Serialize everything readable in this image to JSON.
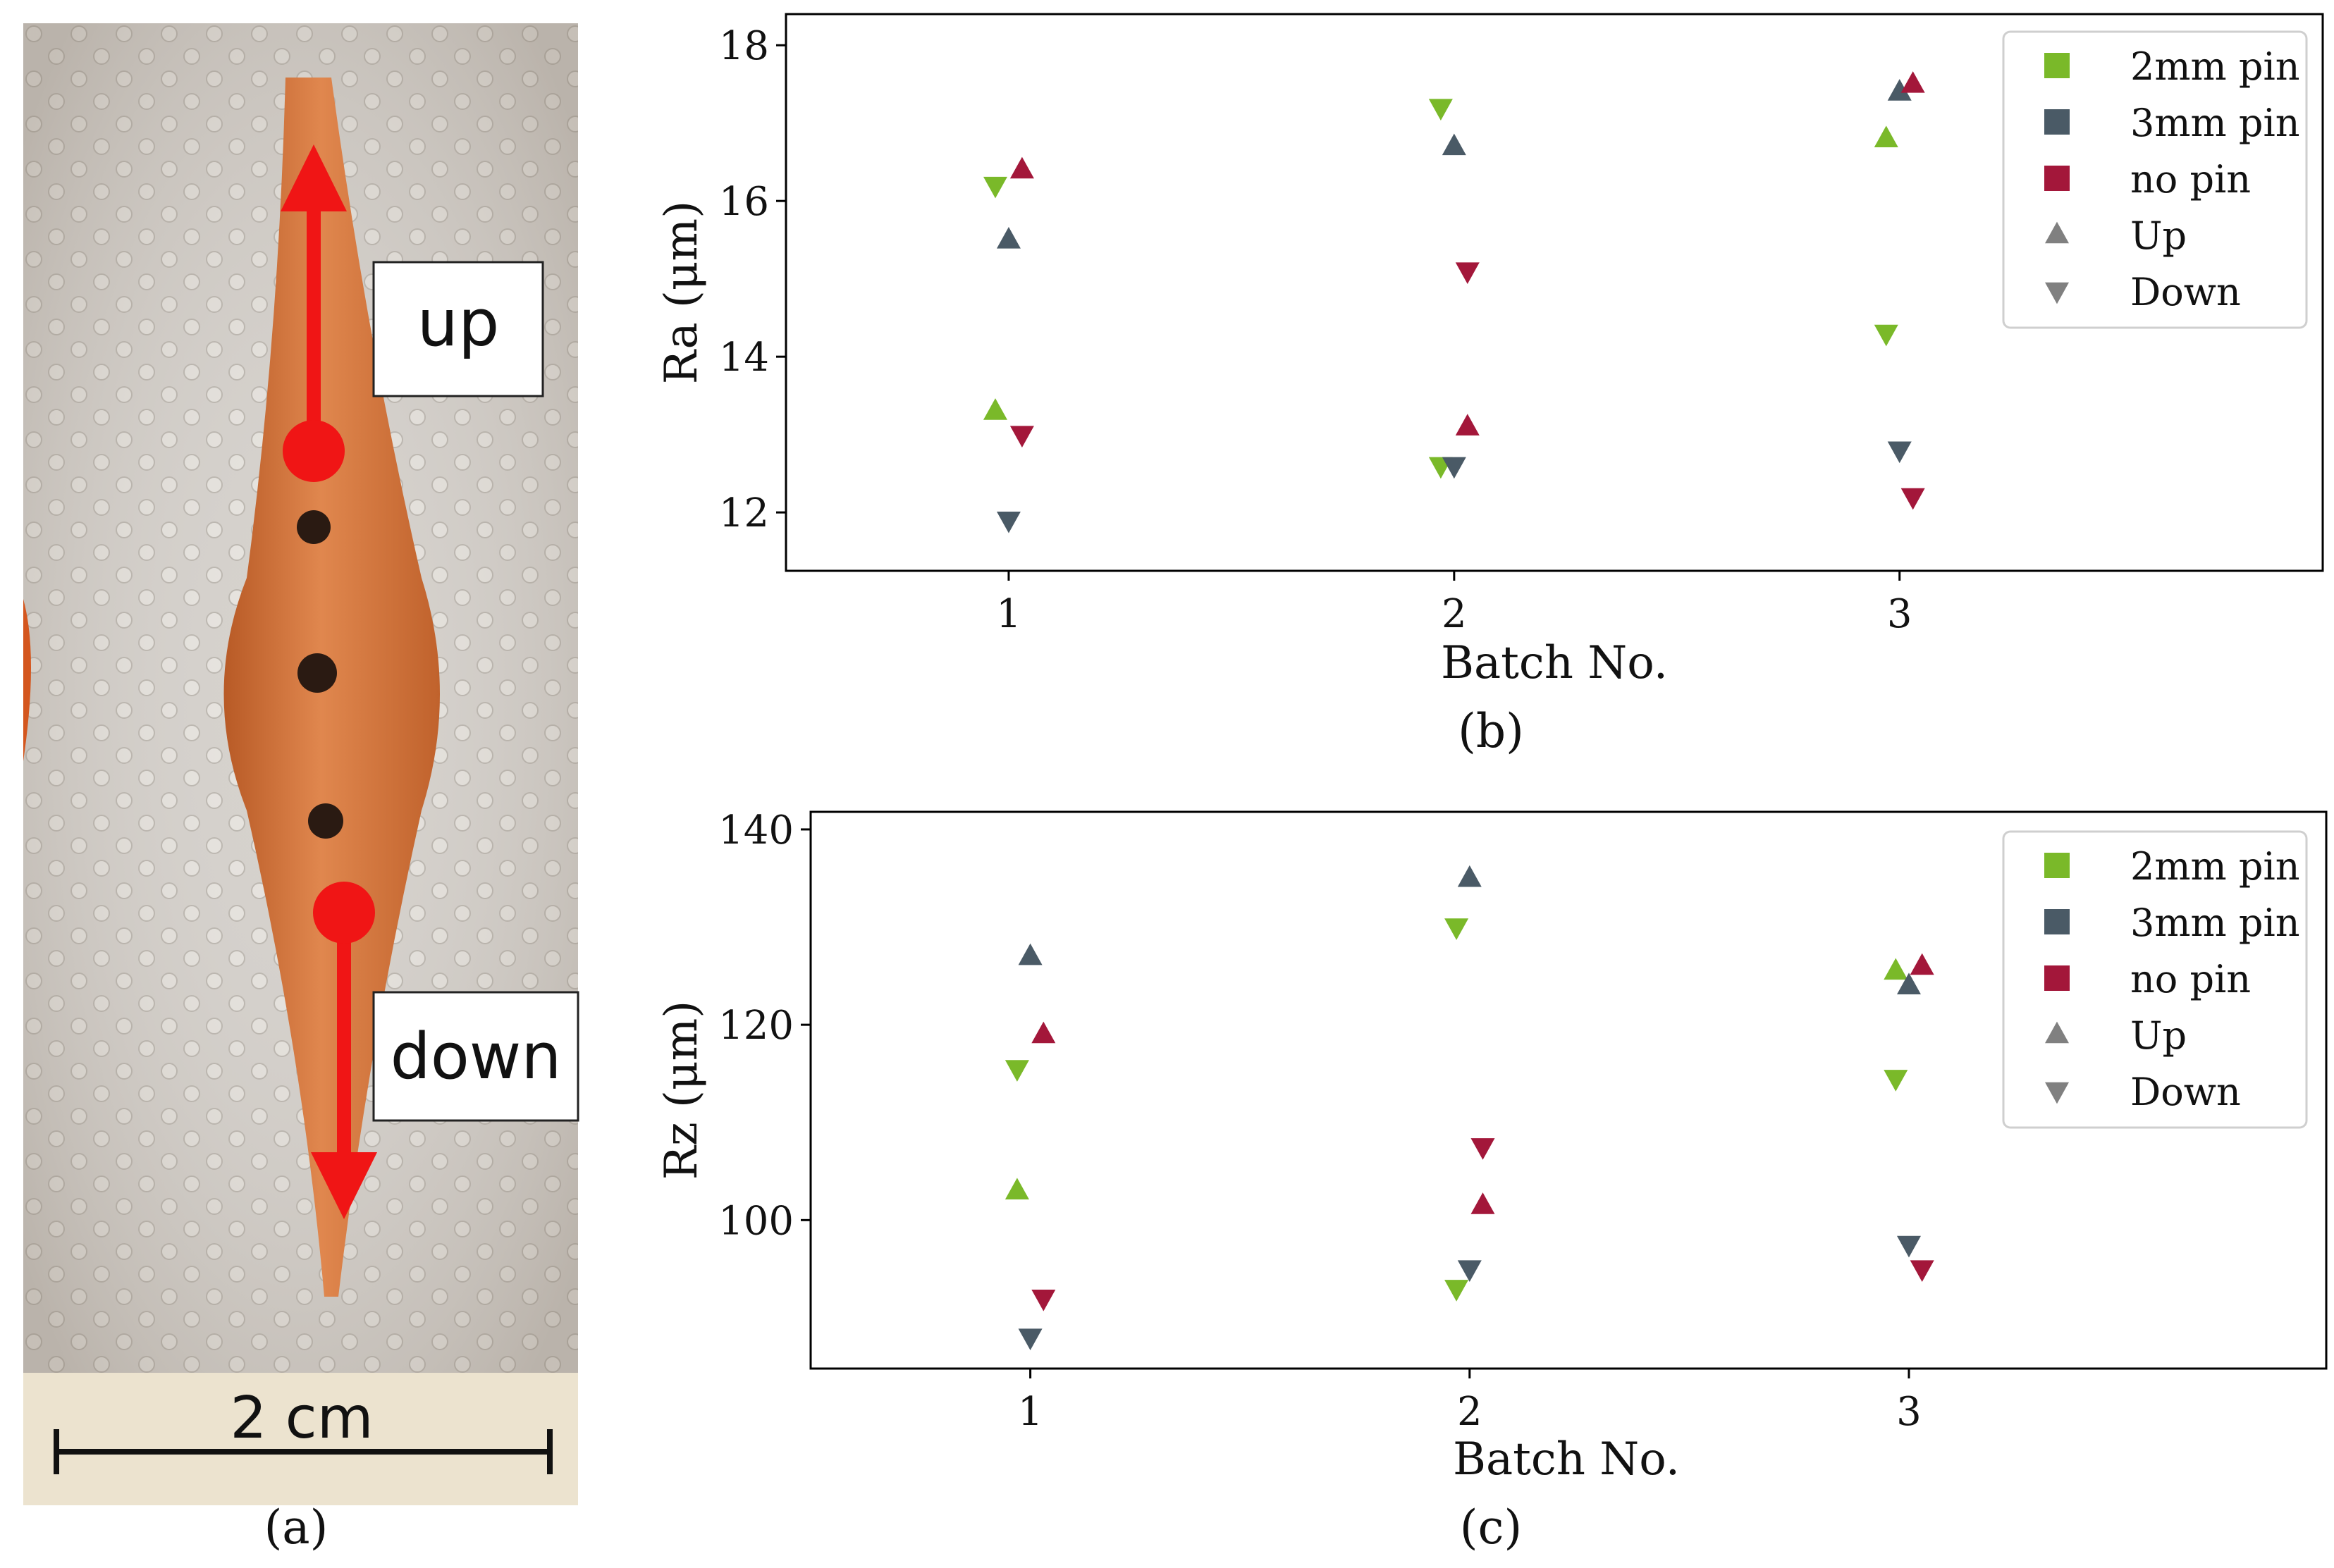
{
  "photo": {
    "up_label": "up",
    "down_label": "down",
    "scale_label": "2 cm",
    "caption": "(a)"
  },
  "colors": {
    "green": "#7ab929",
    "slate": "#4a5a66",
    "crimson": "#a3173a",
    "gray": "#808080",
    "arrow": "#f01515",
    "part": "#d9763c"
  },
  "chart_data": [
    {
      "type": "scatter",
      "id": "b",
      "caption": "(b)",
      "title": "",
      "xlabel": "Batch No.",
      "ylabel": "Ra (μm)",
      "xlim": [
        0.5,
        3.95
      ],
      "ylim": [
        11.25,
        18.4
      ],
      "xticks": [
        1,
        2,
        3
      ],
      "yticks": [
        12,
        14,
        16,
        18
      ],
      "legend_position": "top-right",
      "legend": [
        {
          "label": "2mm pin",
          "marker": "square",
          "color": "#7ab929"
        },
        {
          "label": "3mm pin",
          "marker": "square",
          "color": "#4a5a66"
        },
        {
          "label": "no pin",
          "marker": "square",
          "color": "#a3173a"
        },
        {
          "label": "Up",
          "marker": "triangle-up",
          "color": "#808080"
        },
        {
          "label": "Down",
          "marker": "triangle-down",
          "color": "#808080"
        }
      ],
      "series": [
        {
          "name": "2mm pin",
          "color": "#7ab929",
          "points": [
            {
              "x": 0.97,
              "y": 13.3,
              "dir": "up"
            },
            {
              "x": 0.97,
              "y": 16.2,
              "dir": "down"
            },
            {
              "x": 1.97,
              "y": 12.6,
              "dir": "down"
            },
            {
              "x": 1.97,
              "y": 17.2,
              "dir": "down"
            },
            {
              "x": 2.97,
              "y": 16.8,
              "dir": "up"
            },
            {
              "x": 2.97,
              "y": 14.3,
              "dir": "down"
            }
          ]
        },
        {
          "name": "3mm pin",
          "color": "#4a5a66",
          "points": [
            {
              "x": 1.0,
              "y": 15.5,
              "dir": "up"
            },
            {
              "x": 1.0,
              "y": 11.9,
              "dir": "down"
            },
            {
              "x": 2.0,
              "y": 16.7,
              "dir": "up"
            },
            {
              "x": 2.0,
              "y": 12.6,
              "dir": "down"
            },
            {
              "x": 3.0,
              "y": 17.4,
              "dir": "up"
            },
            {
              "x": 3.0,
              "y": 12.8,
              "dir": "down"
            }
          ]
        },
        {
          "name": "no pin",
          "color": "#a3173a",
          "points": [
            {
              "x": 1.03,
              "y": 16.4,
              "dir": "up"
            },
            {
              "x": 1.03,
              "y": 13.0,
              "dir": "down"
            },
            {
              "x": 2.03,
              "y": 13.1,
              "dir": "up"
            },
            {
              "x": 2.03,
              "y": 15.1,
              "dir": "down"
            },
            {
              "x": 3.03,
              "y": 17.5,
              "dir": "up"
            },
            {
              "x": 3.03,
              "y": 12.2,
              "dir": "down"
            }
          ]
        }
      ]
    },
    {
      "type": "scatter",
      "id": "c",
      "caption": "(c)",
      "title": "",
      "xlabel": "Batch No.",
      "ylabel": "Rz (μm)",
      "xlim": [
        0.5,
        3.95
      ],
      "ylim": [
        84.8,
        141.8
      ],
      "xticks": [
        1,
        2,
        3
      ],
      "yticks": [
        100,
        120,
        140
      ],
      "legend_position": "top-right",
      "legend": [
        {
          "label": "2mm pin",
          "marker": "square",
          "color": "#7ab929"
        },
        {
          "label": "3mm pin",
          "marker": "square",
          "color": "#4a5a66"
        },
        {
          "label": "no pin",
          "marker": "square",
          "color": "#a3173a"
        },
        {
          "label": "Up",
          "marker": "triangle-up",
          "color": "#808080"
        },
        {
          "label": "Down",
          "marker": "triangle-down",
          "color": "#808080"
        }
      ],
      "series": [
        {
          "name": "2mm pin",
          "color": "#7ab929",
          "points": [
            {
              "x": 0.97,
              "y": 103.0,
              "dir": "up"
            },
            {
              "x": 0.97,
              "y": 115.5,
              "dir": "down"
            },
            {
              "x": 1.97,
              "y": 130.0,
              "dir": "down"
            },
            {
              "x": 1.97,
              "y": 93.0,
              "dir": "down"
            },
            {
              "x": 2.97,
              "y": 125.5,
              "dir": "up"
            },
            {
              "x": 2.97,
              "y": 114.5,
              "dir": "down"
            }
          ]
        },
        {
          "name": "3mm pin",
          "color": "#4a5a66",
          "points": [
            {
              "x": 1.0,
              "y": 127.0,
              "dir": "up"
            },
            {
              "x": 1.0,
              "y": 88.0,
              "dir": "down"
            },
            {
              "x": 2.0,
              "y": 135.0,
              "dir": "up"
            },
            {
              "x": 2.0,
              "y": 95.0,
              "dir": "down"
            },
            {
              "x": 3.0,
              "y": 124.0,
              "dir": "up"
            },
            {
              "x": 3.0,
              "y": 97.5,
              "dir": "down"
            }
          ]
        },
        {
          "name": "no pin",
          "color": "#a3173a",
          "points": [
            {
              "x": 1.03,
              "y": 119.0,
              "dir": "up"
            },
            {
              "x": 1.03,
              "y": 92.0,
              "dir": "down"
            },
            {
              "x": 2.03,
              "y": 101.5,
              "dir": "up"
            },
            {
              "x": 2.03,
              "y": 107.5,
              "dir": "down"
            },
            {
              "x": 3.03,
              "y": 126.0,
              "dir": "up"
            },
            {
              "x": 3.03,
              "y": 95.0,
              "dir": "down"
            }
          ]
        }
      ]
    }
  ]
}
